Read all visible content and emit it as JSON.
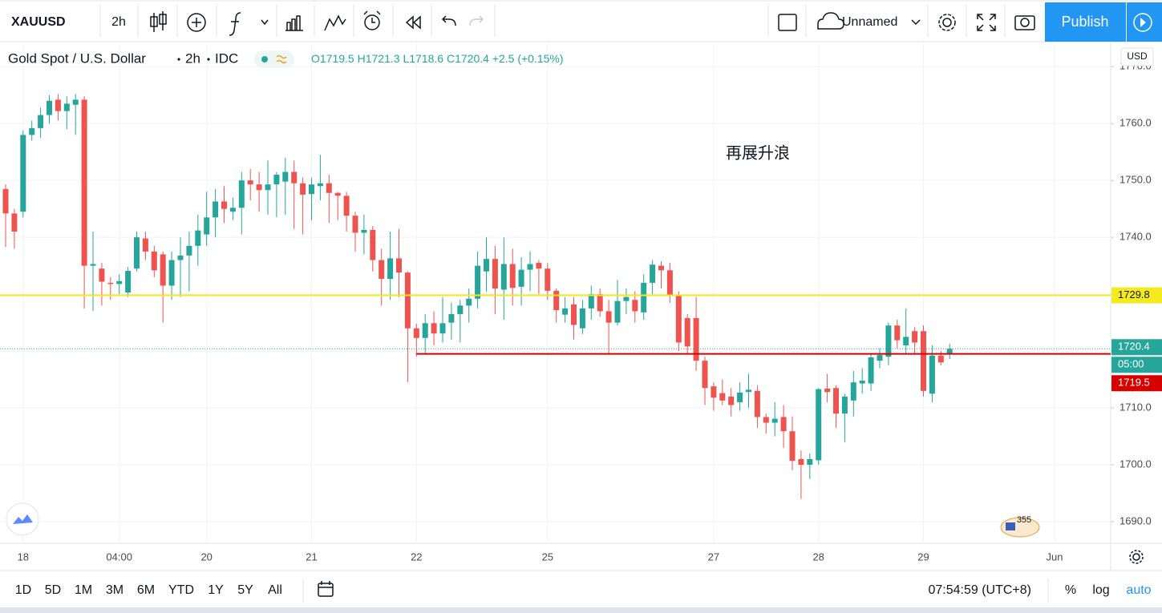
{
  "toolbar": {
    "symbol": "XAUUSD",
    "interval": "2h",
    "layout_name": "Unnamed",
    "publish": "Publish"
  },
  "legend": {
    "name": "Gold Spot / U.S. Dollar",
    "interval": "2h",
    "exchange": "IDC",
    "o_label": "O",
    "open": 1719.5,
    "h_label": "H",
    "high": 1721.3,
    "l_label": "L",
    "low": 1718.6,
    "c_label": "C",
    "close": 1720.4,
    "change": "+2.5",
    "change_pct": "(+0.15%)"
  },
  "price_axis_unit": "USD",
  "badge": "355",
  "bottom_bar": {
    "ranges": [
      "1D",
      "5D",
      "1M",
      "3M",
      "6M",
      "YTD",
      "1Y",
      "5Y",
      "All"
    ],
    "clock": "07:54:59 (UTC+8)",
    "percent": "%",
    "log": "log",
    "auto": "auto"
  },
  "chart_data": {
    "type": "candlestick",
    "annotation": "再展升浪",
    "up_color": "#26a69a",
    "down_color": "#ef5350",
    "categories": [
      null,
      null,
      "18",
      null,
      null,
      null,
      null,
      null,
      null,
      null,
      null,
      null,
      null,
      "04:00",
      null,
      null,
      null,
      null,
      null,
      null,
      null,
      null,
      null,
      "20",
      null,
      null,
      null,
      null,
      null,
      null,
      null,
      null,
      null,
      null,
      null,
      "21",
      null,
      null,
      null,
      null,
      null,
      null,
      null,
      null,
      null,
      null,
      null,
      "22",
      null,
      null,
      null,
      null,
      null,
      null,
      null,
      null,
      null,
      null,
      null,
      null,
      null,
      null,
      "25",
      null,
      null,
      null,
      null,
      null,
      null,
      null,
      null,
      null,
      null,
      null,
      null,
      null,
      null,
      null,
      null,
      null,
      null,
      "27",
      null,
      null,
      null,
      null,
      null,
      null,
      null,
      null,
      null,
      null,
      null,
      "28",
      null,
      null,
      null,
      null,
      null,
      null,
      null,
      null,
      null,
      null,
      null,
      "29",
      null,
      null,
      null,
      null,
      null,
      null,
      null,
      null,
      null,
      null,
      null,
      null,
      null,
      null,
      "Jun"
    ],
    "open": [
      1748.5,
      1744.2,
      1744.5,
      1758.0,
      1759.2,
      1761.5,
      1764.2,
      1762.2,
      1763.3,
      1764.2,
      1735.0,
      1734.5,
      1732.0,
      1731.8,
      1730.3,
      1734.5,
      1739.8,
      1737.5,
      1737.0,
      1731.5,
      1736.0,
      1736.8,
      1738.5,
      1740.5,
      1743.5,
      1746.3,
      1744.5,
      1745.2,
      1750.0,
      1749.3,
      1748.3,
      1749.3,
      1749.8,
      1751.5,
      1749.5,
      1747.6,
      1749.0,
      1749.5,
      1747.8,
      1747.3,
      1743.8,
      1740.8,
      1741.3,
      1736.0,
      1732.7,
      1736.3,
      1733.8,
      1724.0,
      1722.3,
      1724.9,
      1723.1,
      1725.0,
      1726.5,
      1728.0,
      1729.2,
      1734.0,
      1736.2,
      1730.8,
      1735.3,
      1731.3,
      1734.3,
      1735.5,
      1734.5,
      1730.6,
      1726.4,
      1728.2,
      1724.0,
      1727.5,
      1730.0,
      1727.0,
      1725.0,
      1728.8,
      1729.0,
      1726.8,
      1732.0,
      1735.0,
      1734.2,
      1729.8,
      1725.8,
      1725.8,
      1718.3,
      1713.8,
      1712.6,
      1712.0,
      1711.0,
      1712.8,
      1713.0,
      1708.4,
      1707.4,
      1708.4,
      1705.9,
      1701.0,
      1700.0,
      1700.8,
      1713.4,
      1713.5,
      1709.0,
      1711.3,
      1714.3,
      1714.3,
      1718.3,
      1719.0,
      1724.5,
      1721.0,
      1723.5,
      1723.5,
      1712.5,
      1719.2,
      1719.5,
      null,
      null,
      null,
      null,
      null,
      null,
      null,
      null,
      null,
      null,
      null,
      null
    ],
    "high": [
      1749.3,
      1745.0,
      1758.8,
      1760.5,
      1762.8,
      1765.0,
      1765.2,
      1764.8,
      1765.2,
      1764.8,
      1741.0,
      1735.5,
      1733.0,
      1733.5,
      1734.8,
      1741.0,
      1741.0,
      1738.5,
      1737.5,
      1737.5,
      1740.0,
      1741.0,
      1744.0,
      1748.0,
      1748.5,
      1749.0,
      1747.0,
      1751.5,
      1752.0,
      1751.5,
      1753.5,
      1751.5,
      1754.0,
      1753.5,
      1750.5,
      1750.5,
      1754.5,
      1751.0,
      1748.0,
      1748.0,
      1744.5,
      1744.0,
      1742.0,
      1738.0,
      1741.0,
      1741.5,
      1734.0,
      1724.8,
      1726.5,
      1727.0,
      1729.5,
      1728.5,
      1729.0,
      1731.0,
      1737.5,
      1740.0,
      1738.5,
      1740.0,
      1738.0,
      1736.5,
      1737.5,
      1736.0,
      1735.5,
      1731.0,
      1729.5,
      1729.5,
      1729.0,
      1731.5,
      1731.0,
      1729.0,
      1732.5,
      1731.0,
      1730.5,
      1733.5,
      1736.0,
      1735.8,
      1735.5,
      1730.5,
      1726.5,
      1729.5,
      1719.0,
      1714.5,
      1715.0,
      1713.5,
      1714.5,
      1716.0,
      1714.0,
      1709.0,
      1711.0,
      1710.5,
      1708.5,
      1702.5,
      1702.0,
      1713.5,
      1716.0,
      1714.0,
      1712.5,
      1716.5,
      1717.0,
      1719.5,
      1720.5,
      1725.0,
      1725.5,
      1727.5,
      1724.2,
      1724.5,
      1721.0,
      1720.0,
      1721.3,
      null,
      null,
      null,
      null,
      null,
      null,
      null,
      null,
      null,
      null,
      null,
      null
    ],
    "low": [
      1738.3,
      1738.0,
      1743.5,
      1757.0,
      1757.5,
      1760.0,
      1760.5,
      1759.0,
      1758.0,
      1727.5,
      1727.0,
      1728.0,
      1729.0,
      1730.0,
      1729.5,
      1734.0,
      1736.0,
      1733.0,
      1725.0,
      1729.0,
      1729.5,
      1730.5,
      1735.0,
      1738.5,
      1740.0,
      1742.5,
      1743.0,
      1740.5,
      1746.5,
      1744.5,
      1744.0,
      1743.5,
      1744.0,
      1741.5,
      1740.5,
      1743.0,
      1746.5,
      1742.5,
      1743.0,
      1741.0,
      1737.5,
      1737.0,
      1734.0,
      1728.0,
      1729.0,
      1729.5,
      1714.5,
      1719.0,
      1719.5,
      1721.0,
      1721.5,
      1722.0,
      1721.5,
      1725.0,
      1727.5,
      1730.5,
      1726.5,
      1725.5,
      1728.0,
      1728.0,
      1730.5,
      1730.0,
      1729.0,
      1725.0,
      1725.0,
      1722.0,
      1723.0,
      1725.5,
      1726.0,
      1719.5,
      1724.5,
      1726.5,
      1725.0,
      1725.5,
      1730.0,
      1731.0,
      1728.5,
      1720.0,
      1719.5,
      1716.5,
      1710.5,
      1709.5,
      1710.5,
      1708.5,
      1709.5,
      1710.0,
      1706.5,
      1705.5,
      1705.0,
      1703.0,
      1699.0,
      1694.0,
      1697.5,
      1700.0,
      1711.0,
      1706.5,
      1704.0,
      1708.5,
      1712.5,
      1713.0,
      1717.0,
      1717.5,
      1720.5,
      1719.5,
      1719.5,
      1712.0,
      1711.0,
      1717.5,
      1718.6,
      null,
      null,
      null,
      null,
      null,
      null,
      null,
      null,
      null,
      null,
      null,
      null
    ],
    "close": [
      1744.2,
      1741.0,
      1758.0,
      1759.2,
      1761.5,
      1764.0,
      1762.2,
      1763.5,
      1764.2,
      1735.0,
      1735.3,
      1732.2,
      1731.8,
      1732.3,
      1734.1,
      1740.0,
      1737.5,
      1734.2,
      1731.5,
      1736.0,
      1736.8,
      1738.5,
      1741.2,
      1743.5,
      1746.3,
      1745.0,
      1745.2,
      1750.0,
      1749.3,
      1748.3,
      1749.3,
      1751.0,
      1751.5,
      1749.5,
      1747.5,
      1749.3,
      1749.5,
      1747.8,
      1747.3,
      1743.8,
      1740.8,
      1741.3,
      1736.0,
      1732.7,
      1736.3,
      1733.8,
      1724.0,
      1722.3,
      1724.9,
      1723.1,
      1724.9,
      1726.5,
      1728.0,
      1729.2,
      1735.0,
      1736.2,
      1731.0,
      1735.3,
      1731.1,
      1734.3,
      1735.3,
      1734.5,
      1730.6,
      1727.2,
      1727.5,
      1724.6,
      1727.5,
      1730.0,
      1727.0,
      1725.0,
      1728.8,
      1729.5,
      1727.0,
      1732.0,
      1735.2,
      1734.2,
      1729.8,
      1721.5,
      1720.8,
      1718.3,
      1713.5,
      1711.8,
      1711.3,
      1710.5,
      1712.7,
      1713.2,
      1708.4,
      1707.4,
      1708.1,
      1705.9,
      1700.7,
      1700.0,
      1701.0,
      1713.3,
      1712.8,
      1709.0,
      1712.0,
      1714.5,
      1714.8,
      1718.9,
      1719.3,
      1724.5,
      1721.9,
      1722.5,
      1721.5,
      1713.0,
      1719.2,
      1718.0,
      1720.4,
      null,
      null,
      null,
      null,
      null,
      null,
      null,
      null,
      null,
      null,
      null,
      null
    ],
    "ylim": [
      1686.2,
      1774.4
    ],
    "yticks": [
      {
        "value": 1690,
        "label": "1690.0"
      },
      {
        "value": 1700,
        "label": "1700.0"
      },
      {
        "value": 1710,
        "label": "1710.0"
      },
      {
        "value": 1720,
        "label": "1720.0"
      },
      {
        "value": 1730,
        "label": "1730.0"
      },
      {
        "value": 1740,
        "label": "1740.0"
      },
      {
        "value": 1750,
        "label": "1750.0"
      },
      {
        "value": 1760,
        "label": "1760.0"
      },
      {
        "value": 1770,
        "label": "1770.0"
      }
    ],
    "grid": true,
    "hlines": [
      {
        "value": 1729.8,
        "color": "#f5ea1e"
      },
      {
        "value": 1719.5,
        "color": "#d50000",
        "start": "22"
      }
    ],
    "last_price": {
      "value": 1720.4,
      "countdown": "05:00",
      "color": "#26a69a"
    }
  }
}
